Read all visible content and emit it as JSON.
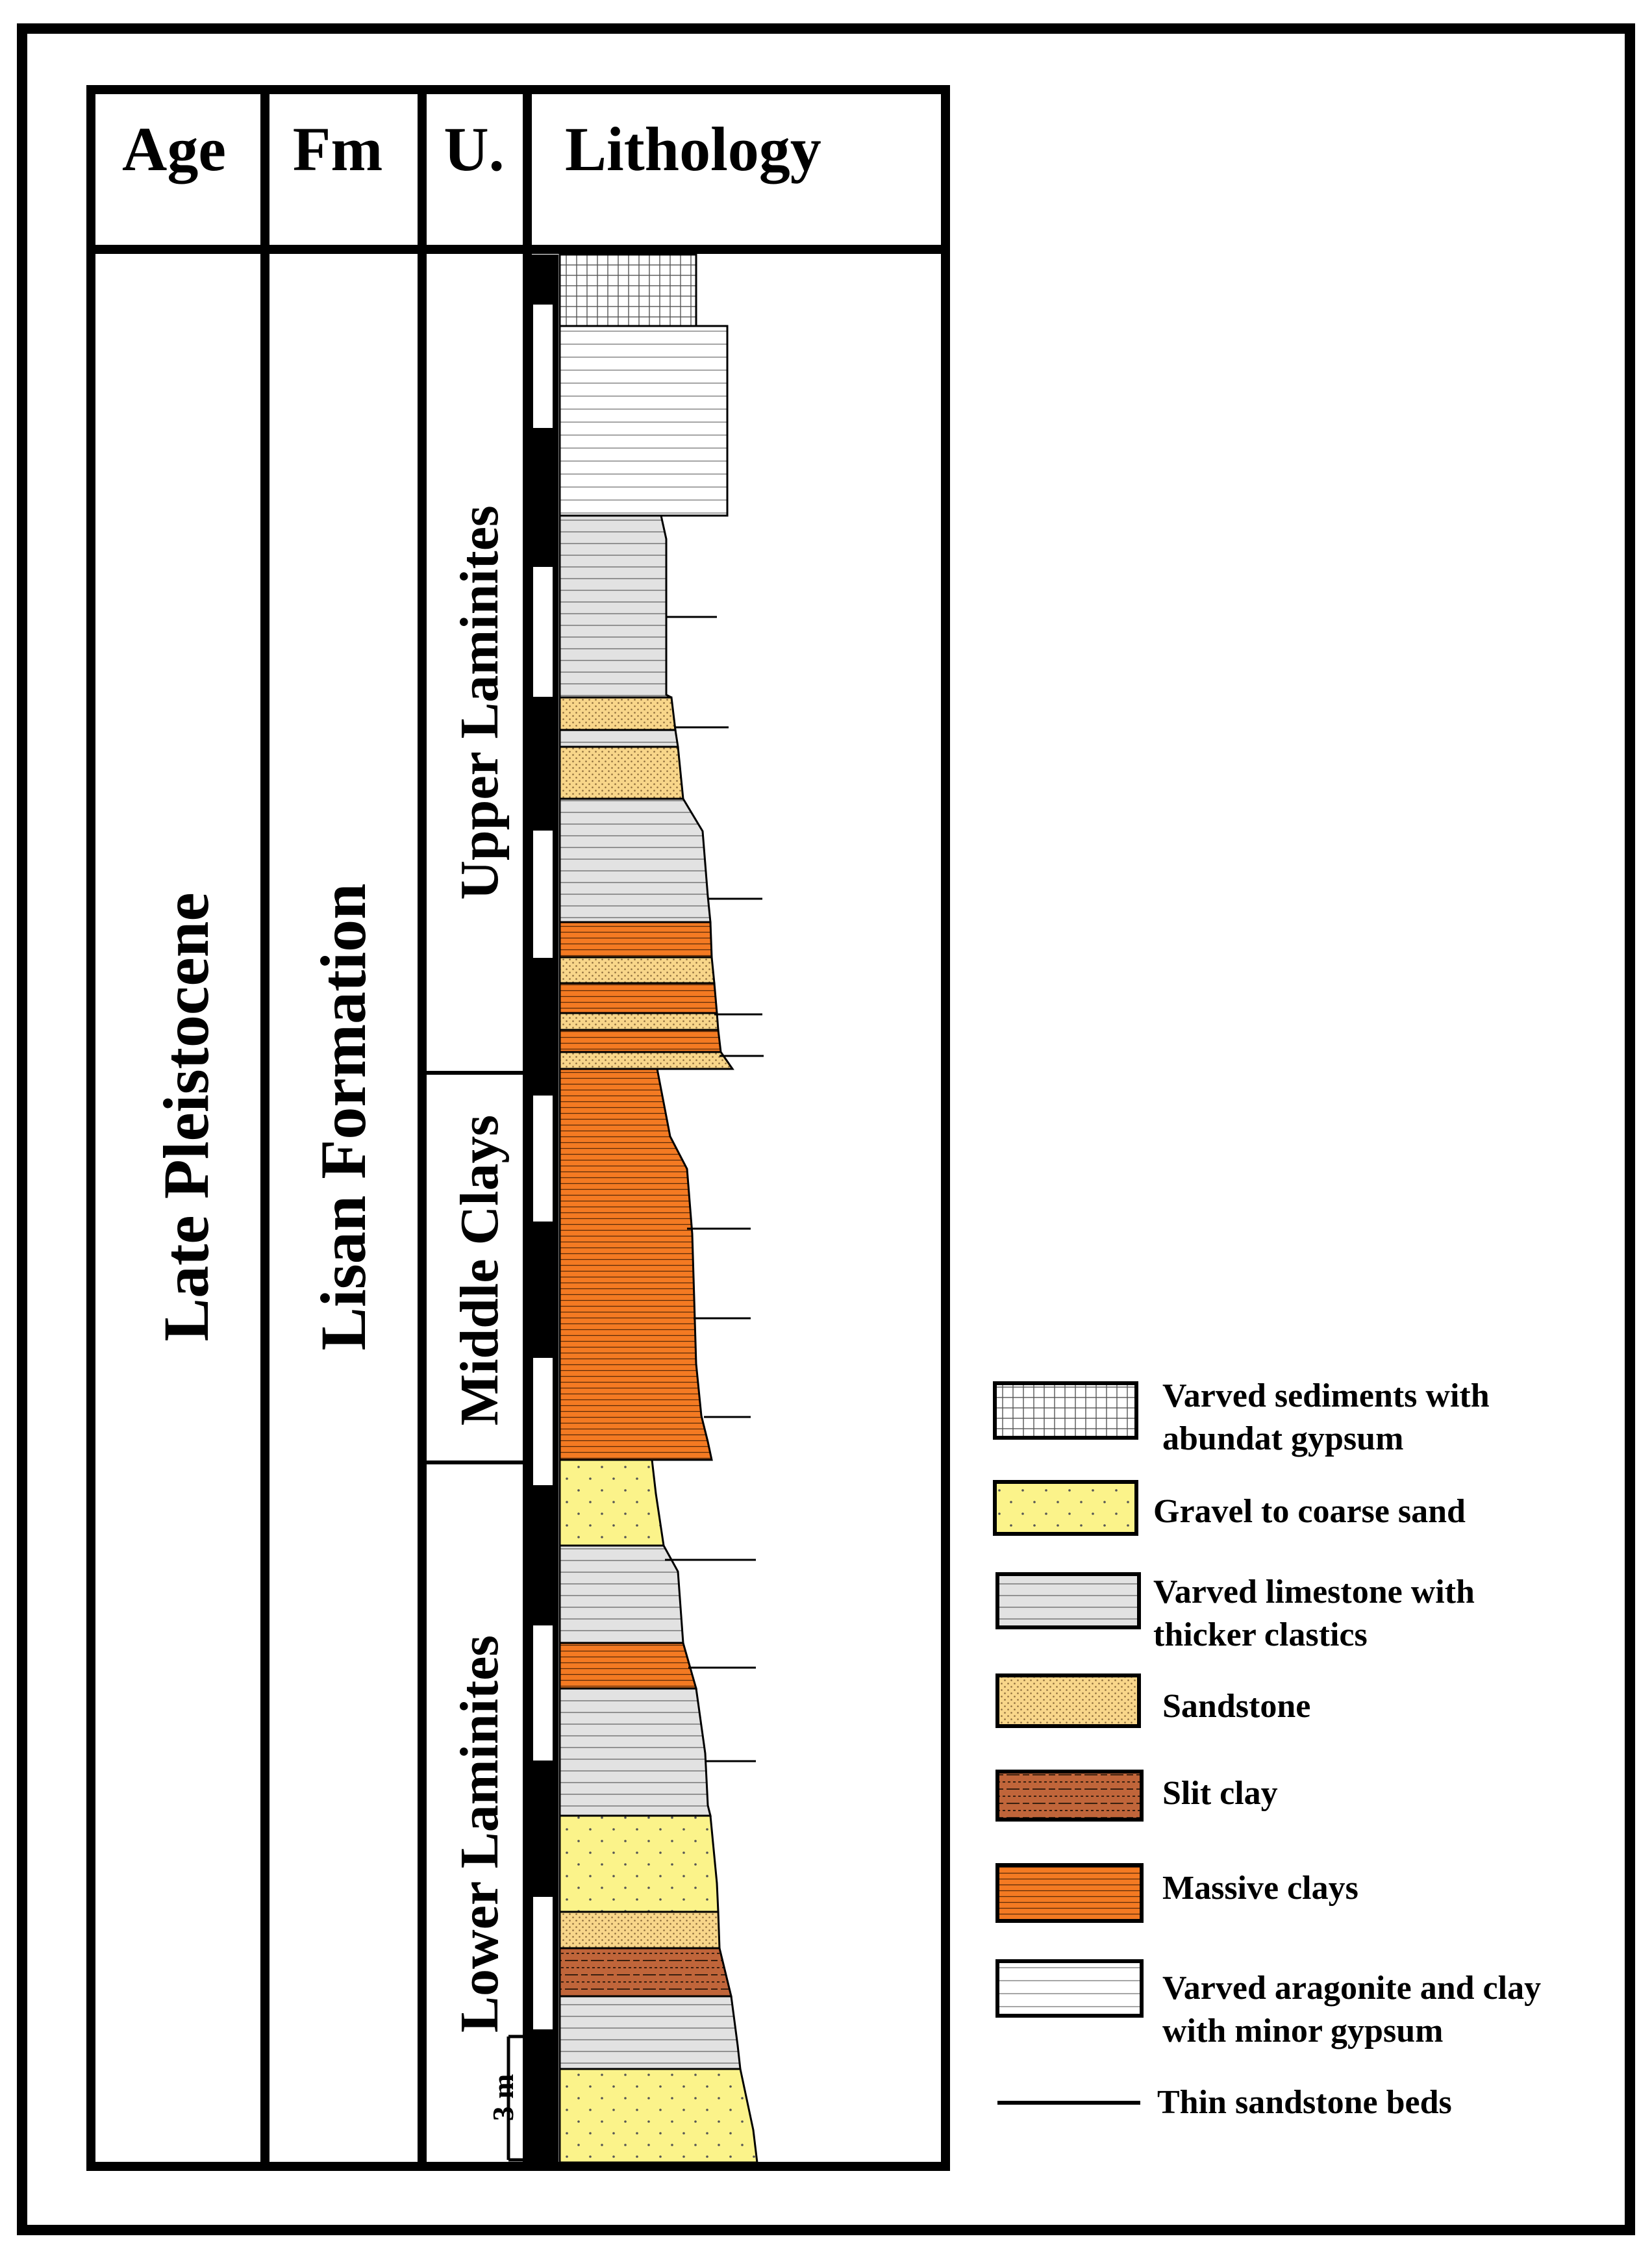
{
  "header": {
    "age": "Age",
    "fm": "Fm",
    "unit": "U.",
    "lithology": "Lithology"
  },
  "age_label": "Late Pleistocene",
  "formation_label": "Lisan Formation",
  "units": {
    "upper": "Upper Laminites",
    "middle": "Middle Clays",
    "lower": "Lower Laminites"
  },
  "scale_label": "3 m",
  "legend": [
    {
      "key": "gypsum",
      "line1": "Varved sediments with",
      "line2": "abundat gypsum"
    },
    {
      "key": "gravel",
      "line1": "Gravel to coarse sand",
      "line2": ""
    },
    {
      "key": "limestone",
      "line1": "Varved limestone with",
      "line2": "thicker clastics"
    },
    {
      "key": "sandstone",
      "line1": "Sandstone",
      "line2": ""
    },
    {
      "key": "siltclay",
      "line1": "Slit clay",
      "line2": ""
    },
    {
      "key": "clay",
      "line1": "Massive clays",
      "line2": ""
    },
    {
      "key": "aragonite",
      "line1": "Varved aragonite and clay",
      "line2": "with minor gypsum"
    },
    {
      "key": "thinsand",
      "line1": "Thin sandstone beds",
      "line2": ""
    }
  ],
  "colors": {
    "gravel": "#fbf38a",
    "sandstone": "#f8d68a",
    "siltclay": "#c0653a",
    "clay": "#f47a22",
    "limestone": "#e2e2e2",
    "aragonite": "#ffffff",
    "gypsum": "#ffffff"
  }
}
